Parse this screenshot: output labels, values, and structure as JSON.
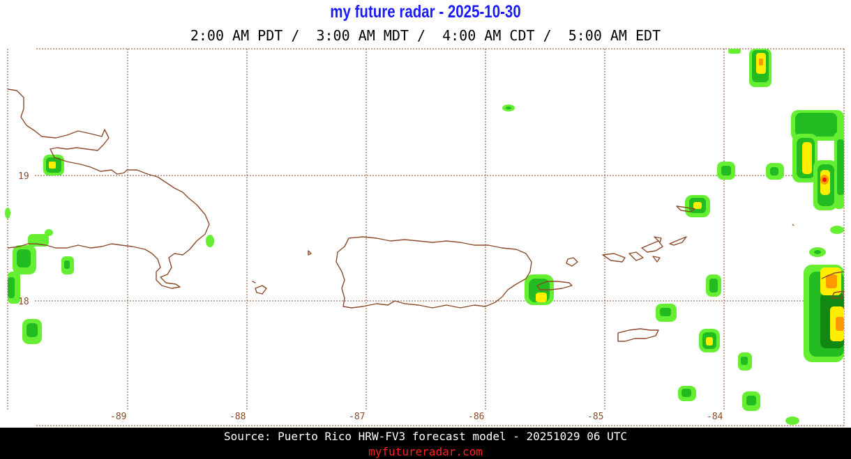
{
  "header": {
    "title": "my future radar - 2025-10-30",
    "times": "2:00 AM PDT /  3:00 AM MDT /  4:00 AM CDT /  5:00 AM EDT"
  },
  "map": {
    "region": "Puerto Rico",
    "longitude_labels": [
      "-89",
      "-88",
      "-87",
      "-86",
      "-85",
      "-84"
    ],
    "latitude_labels": [
      "19",
      "18"
    ],
    "colors": {
      "grid": "#8b4a2a",
      "coastline": "#8b4a2a",
      "radar_light_green": "#66ee33",
      "radar_green": "#22bb22",
      "radar_dark_green": "#118811",
      "radar_yellow": "#ffee00",
      "radar_orange": "#ff9900",
      "radar_red": "#ee1111"
    }
  },
  "footer": {
    "source": "Source: Puerto Rico HRW-FV3 forecast model - 20251029 06 UTC",
    "site": "myfutureradar.com",
    "background": "#000000"
  }
}
